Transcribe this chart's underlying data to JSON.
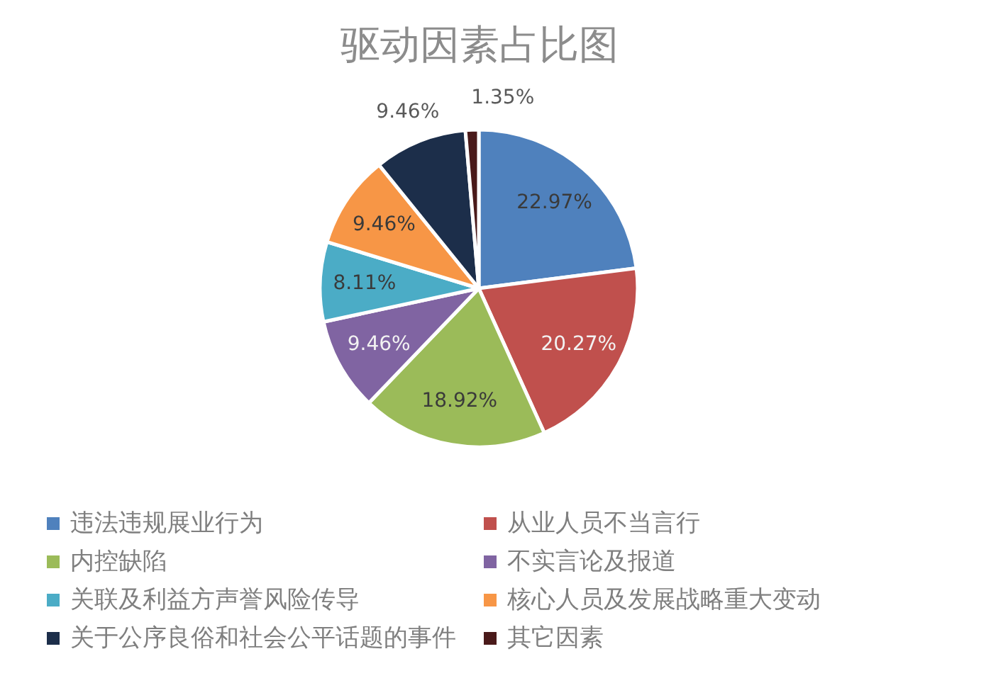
{
  "chart_data": {
    "type": "pie",
    "title": "驱动因素占比图",
    "categories": [
      "违法违规展业行为",
      "从业人员不当言行",
      "内控缺陷",
      "不实言论及报道",
      "关联及利益方声誉风险传导",
      "核心人员及发展战略重大变动",
      "关于公序良俗和社会公平话题的事件",
      "其它因素"
    ],
    "values": [
      22.97,
      20.27,
      18.92,
      9.46,
      8.11,
      9.46,
      9.46,
      1.35
    ],
    "colors": [
      "#4f81bd",
      "#c0504d",
      "#9bbb59",
      "#8064a2",
      "#4bacc6",
      "#f79646",
      "#1c2e4a",
      "#4a1a1a"
    ],
    "value_labels": [
      "22.97%",
      "20.27%",
      "18.92%",
      "9.46%",
      "8.11%",
      "9.46%",
      "9.46%",
      "1.35%"
    ],
    "legend": "bottom"
  }
}
